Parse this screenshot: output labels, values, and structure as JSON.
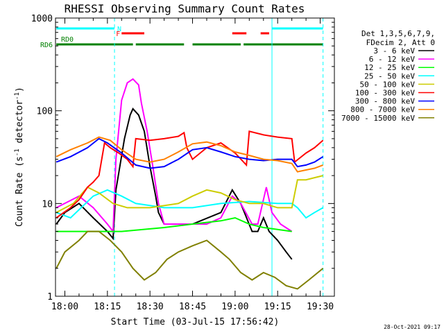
{
  "chart_data": {
    "type": "line",
    "title": "RHESSI Observing Summary Count Rates",
    "xlabel": "Start Time (03-Jul-15 17:56:42)",
    "ylabel": "Count Rate (s",
    "ylabel_sup": "-1",
    "ylabel_mid": " detector",
    "ylabel_end": ")",
    "x_ticks": [
      "18:00",
      "18:15",
      "18:30",
      "18:45",
      "19:00",
      "19:15",
      "19:30"
    ],
    "y_ticks": [
      "1",
      "10",
      "100",
      "1000"
    ],
    "xlim": [
      -3.3,
      95
    ],
    "ylim": [
      1,
      1000
    ],
    "y_scale": "log",
    "timestamp": "28-Oct-2021 09:17",
    "legend": {
      "header": [
        "Det 1,3,5,6,7,9,",
        "FDecim 2, Att 0"
      ],
      "placement": "right"
    },
    "flags": [
      {
        "label": "N",
        "color": "#00ffff",
        "segments": [
          [
            -3,
            17.5
          ],
          [
            73,
            91
          ]
        ]
      },
      {
        "label": "F",
        "color": "#ff0000",
        "segments": [
          [
            20,
            28
          ],
          [
            59,
            64
          ],
          [
            69,
            72
          ]
        ]
      },
      {
        "label": "RD0",
        "color": "#008000",
        "segments": []
      },
      {
        "label": "RD6",
        "color": "#008000",
        "segments": [
          [
            -3,
            24
          ],
          [
            25,
            42
          ],
          [
            45,
            62
          ],
          [
            63,
            91
          ]
        ]
      }
    ],
    "vlines": [
      {
        "x": 17.5,
        "color": "#00ffff",
        "style": "dashed"
      },
      {
        "x": 73,
        "color": "#00ffff",
        "style": "solid"
      },
      {
        "x": 91,
        "color": "#00ffff",
        "style": "dashed"
      }
    ],
    "series": [
      {
        "name": "3 - 6 keV",
        "color": "#000000",
        "points": [
          [
            -3,
            6
          ],
          [
            0,
            8
          ],
          [
            5,
            10
          ],
          [
            10,
            7
          ],
          [
            15,
            5
          ],
          [
            17,
            4.2
          ],
          [
            18,
            14
          ],
          [
            21,
            50
          ],
          [
            23,
            90
          ],
          [
            24,
            105
          ],
          [
            26,
            90
          ],
          [
            28,
            60
          ],
          [
            30,
            25
          ],
          [
            32,
            12
          ],
          [
            33,
            8
          ],
          [
            35,
            6
          ],
          [
            45,
            6
          ],
          [
            55,
            8
          ],
          [
            59,
            14
          ],
          [
            62,
            10
          ],
          [
            66,
            5
          ],
          [
            68,
            5
          ],
          [
            70,
            7
          ],
          [
            72,
            5
          ],
          [
            75,
            4
          ],
          [
            78,
            3
          ],
          [
            80,
            2.5
          ]
        ]
      },
      {
        "name": "6 - 12 keV",
        "color": "#ff00ff",
        "points": [
          [
            -3,
            9
          ],
          [
            5,
            12
          ],
          [
            10,
            9
          ],
          [
            15,
            6
          ],
          [
            17,
            5
          ],
          [
            18,
            30
          ],
          [
            20,
            130
          ],
          [
            22,
            200
          ],
          [
            24,
            220
          ],
          [
            26,
            190
          ],
          [
            27,
            120
          ],
          [
            29,
            60
          ],
          [
            31,
            25
          ],
          [
            33,
            10
          ],
          [
            35,
            6
          ],
          [
            40,
            6
          ],
          [
            50,
            6
          ],
          [
            55,
            7
          ],
          [
            59,
            12
          ],
          [
            62,
            10
          ],
          [
            66,
            6
          ],
          [
            68,
            6
          ],
          [
            71,
            15
          ],
          [
            73,
            8
          ],
          [
            76,
            6
          ],
          [
            80,
            5
          ]
        ]
      },
      {
        "name": "12 - 25 keV",
        "color": "#00ff00",
        "points": [
          [
            -3,
            5
          ],
          [
            10,
            5
          ],
          [
            20,
            5
          ],
          [
            35,
            5.5
          ],
          [
            45,
            6
          ],
          [
            55,
            6.5
          ],
          [
            60,
            7
          ],
          [
            65,
            6
          ],
          [
            70,
            5.5
          ],
          [
            80,
            5
          ]
        ]
      },
      {
        "name": "25 - 50 keV",
        "color": "#00ffff",
        "points": [
          [
            -3,
            8
          ],
          [
            2,
            7
          ],
          [
            10,
            12
          ],
          [
            15,
            14
          ],
          [
            20,
            12
          ],
          [
            25,
            10
          ],
          [
            30,
            9.5
          ],
          [
            35,
            9
          ],
          [
            45,
            9
          ],
          [
            55,
            10
          ],
          [
            65,
            10.5
          ],
          [
            75,
            10
          ],
          [
            80,
            10
          ],
          [
            82,
            9
          ],
          [
            85,
            7
          ],
          [
            88,
            8
          ],
          [
            91,
            9
          ]
        ]
      },
      {
        "name": "50 - 100 keV",
        "color": "#cccc00",
        "points": [
          [
            -3,
            8
          ],
          [
            3,
            10
          ],
          [
            8,
            15
          ],
          [
            12,
            13
          ],
          [
            17,
            10
          ],
          [
            22,
            9
          ],
          [
            30,
            9
          ],
          [
            40,
            10
          ],
          [
            45,
            12
          ],
          [
            50,
            14
          ],
          [
            55,
            13
          ],
          [
            60,
            11
          ],
          [
            65,
            10
          ],
          [
            70,
            10
          ],
          [
            75,
            9
          ],
          [
            80,
            9
          ],
          [
            82,
            18
          ],
          [
            85,
            18
          ],
          [
            88,
            19
          ],
          [
            91,
            20
          ]
        ]
      },
      {
        "name": "100 - 300 keV",
        "color": "#ff0000",
        "points": [
          [
            -3,
            7
          ],
          [
            2,
            9
          ],
          [
            5,
            11
          ],
          [
            8,
            15
          ],
          [
            10,
            17
          ],
          [
            12,
            20
          ],
          [
            14,
            45
          ],
          [
            16,
            40
          ],
          [
            19,
            35
          ],
          [
            22,
            30
          ],
          [
            24,
            25
          ],
          [
            25,
            50
          ],
          [
            30,
            48
          ],
          [
            35,
            50
          ],
          [
            40,
            53
          ],
          [
            42,
            58
          ],
          [
            43,
            40
          ],
          [
            45,
            30
          ],
          [
            50,
            40
          ],
          [
            55,
            45
          ],
          [
            60,
            35
          ],
          [
            64,
            26
          ],
          [
            65,
            60
          ],
          [
            70,
            55
          ],
          [
            75,
            52
          ],
          [
            80,
            50
          ],
          [
            81,
            28
          ],
          [
            85,
            35
          ],
          [
            88,
            40
          ],
          [
            91,
            48
          ]
        ]
      },
      {
        "name": "300 - 800 keV",
        "color": "#0000ff",
        "points": [
          [
            -3,
            28
          ],
          [
            2,
            32
          ],
          [
            8,
            40
          ],
          [
            12,
            50
          ],
          [
            15,
            45
          ],
          [
            20,
            35
          ],
          [
            25,
            26
          ],
          [
            30,
            24
          ],
          [
            35,
            25
          ],
          [
            40,
            30
          ],
          [
            45,
            38
          ],
          [
            50,
            40
          ],
          [
            55,
            36
          ],
          [
            60,
            32
          ],
          [
            65,
            30
          ],
          [
            70,
            29
          ],
          [
            75,
            30
          ],
          [
            80,
            30
          ],
          [
            82,
            25
          ],
          [
            85,
            26
          ],
          [
            88,
            28
          ],
          [
            91,
            32
          ]
        ]
      },
      {
        "name": "800 - 7000 keV",
        "color": "#ff8000",
        "points": [
          [
            -3,
            32
          ],
          [
            2,
            38
          ],
          [
            8,
            45
          ],
          [
            12,
            52
          ],
          [
            16,
            48
          ],
          [
            20,
            38
          ],
          [
            25,
            30
          ],
          [
            30,
            28
          ],
          [
            35,
            30
          ],
          [
            40,
            36
          ],
          [
            45,
            44
          ],
          [
            50,
            46
          ],
          [
            55,
            42
          ],
          [
            60,
            36
          ],
          [
            65,
            33
          ],
          [
            70,
            30
          ],
          [
            75,
            29
          ],
          [
            80,
            27
          ],
          [
            82,
            22
          ],
          [
            85,
            23
          ],
          [
            88,
            24
          ],
          [
            91,
            26
          ]
        ]
      },
      {
        "name": "7000 - 15000 keV",
        "color": "#808000",
        "points": [
          [
            -3,
            2
          ],
          [
            0,
            3
          ],
          [
            5,
            4
          ],
          [
            8,
            5
          ],
          [
            12,
            5
          ],
          [
            16,
            4
          ],
          [
            20,
            3
          ],
          [
            24,
            2
          ],
          [
            28,
            1.5
          ],
          [
            32,
            1.8
          ],
          [
            36,
            2.5
          ],
          [
            40,
            3
          ],
          [
            45,
            3.5
          ],
          [
            50,
            4
          ],
          [
            55,
            3
          ],
          [
            58,
            2.5
          ],
          [
            62,
            1.8
          ],
          [
            66,
            1.5
          ],
          [
            70,
            1.8
          ],
          [
            74,
            1.6
          ],
          [
            78,
            1.3
          ],
          [
            82,
            1.2
          ],
          [
            86,
            1.5
          ],
          [
            91,
            2
          ]
        ]
      }
    ]
  }
}
